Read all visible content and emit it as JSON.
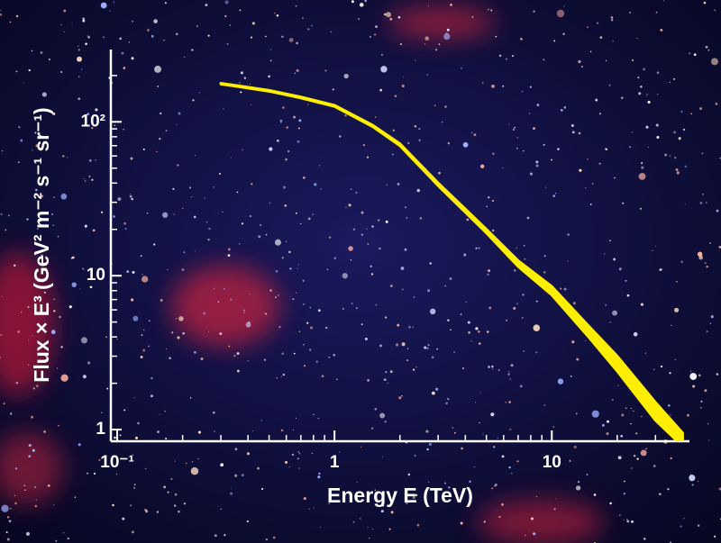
{
  "chart_data": {
    "type": "band",
    "xlabel": "Energy E (TeV)",
    "ylabel": "Flux × E³ (GeV² m⁻² s⁻¹ sr⁻¹)",
    "xscale": "log",
    "yscale": "log",
    "xlim": [
      0.0935,
      43
    ],
    "ylim": [
      0.84,
      295
    ],
    "xticks": [
      {
        "value": 0.1,
        "label": "10⁻¹"
      },
      1,
      10
    ],
    "yticks": [
      1,
      10,
      {
        "value": 100,
        "label": "10²"
      }
    ],
    "xminorticks": [
      0.2,
      0.3,
      0.4,
      0.5,
      0.6,
      0.7,
      0.8,
      0.9,
      2,
      3,
      4,
      5,
      6,
      7,
      8,
      9,
      20,
      30,
      40
    ],
    "yminorticks": [
      2,
      3,
      4,
      5,
      6,
      7,
      8,
      9,
      20,
      30,
      40,
      50,
      60,
      70,
      80,
      90,
      200
    ],
    "color": "#ffee00",
    "x": [
      0.3,
      0.5,
      0.7,
      1,
      1.5,
      2,
      3,
      5,
      7,
      10,
      15,
      20,
      30,
      40
    ],
    "y_high": [
      178,
      160,
      145,
      128,
      95,
      72,
      40,
      20,
      12.5,
      8.5,
      4.6,
      3.0,
      1.5,
      0.95
    ],
    "y_low": [
      176,
      158,
      143,
      126,
      93,
      70,
      38.5,
      19,
      11.5,
      7.5,
      3.9,
      2.4,
      1.15,
      0.78
    ]
  }
}
